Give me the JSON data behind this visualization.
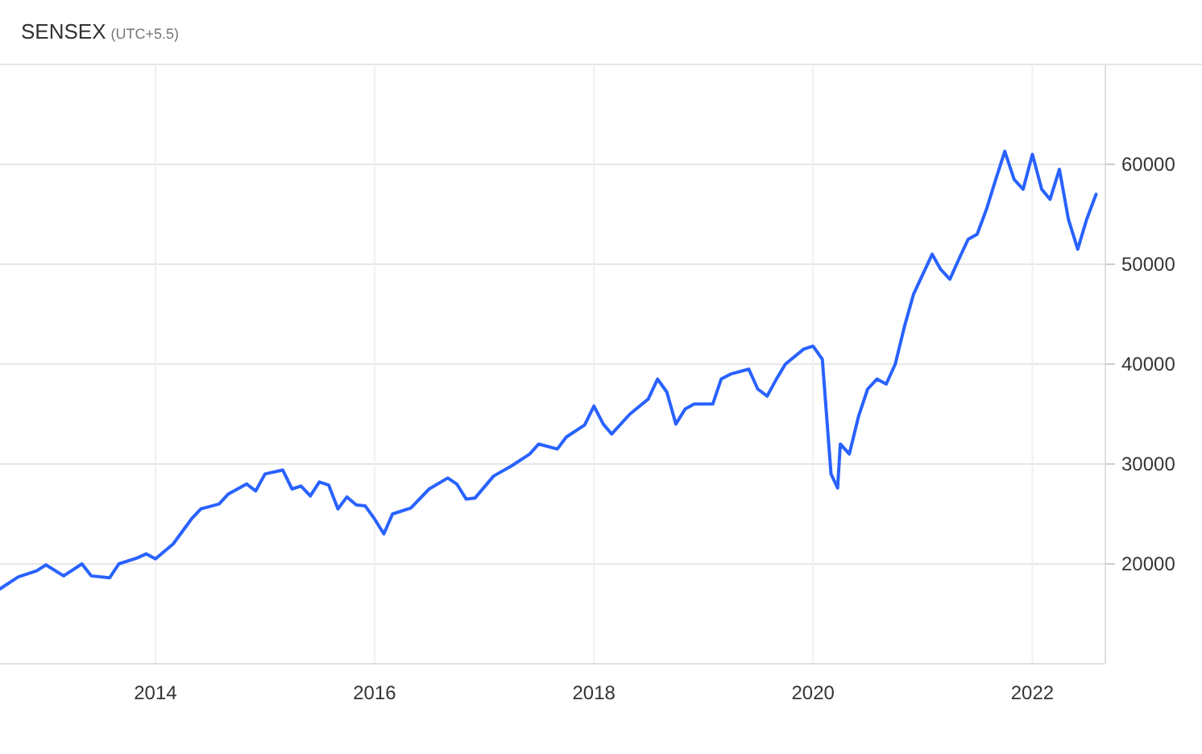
{
  "chart_data": {
    "type": "line",
    "title": "SENSEX",
    "subtitle": "(UTC+5.5)",
    "x": [
      "2012-08",
      "2012-10",
      "2012-12",
      "2013-01",
      "2013-03",
      "2013-05",
      "2013-06",
      "2013-08",
      "2013-09",
      "2013-11",
      "2013-12",
      "2014-01",
      "2014-03",
      "2014-05",
      "2014-06",
      "2014-08",
      "2014-09",
      "2014-11",
      "2014-12",
      "2015-01",
      "2015-03",
      "2015-04",
      "2015-05",
      "2015-06",
      "2015-07",
      "2015-08",
      "2015-09",
      "2015-10",
      "2015-11",
      "2015-12",
      "2016-01",
      "2016-02",
      "2016-03",
      "2016-05",
      "2016-07",
      "2016-09",
      "2016-10",
      "2016-11",
      "2016-12",
      "2017-02",
      "2017-04",
      "2017-06",
      "2017-07",
      "2017-09",
      "2017-10",
      "2017-12",
      "2018-01",
      "2018-02",
      "2018-03",
      "2018-05",
      "2018-07",
      "2018-08",
      "2018-09",
      "2018-10",
      "2018-11",
      "2018-12",
      "2019-02",
      "2019-03",
      "2019-04",
      "2019-06",
      "2019-07",
      "2019-08",
      "2019-09",
      "2019-10",
      "2019-12",
      "2020-01",
      "2020-02",
      "2020-03",
      "2020-03-23",
      "2020-04",
      "2020-05",
      "2020-06",
      "2020-07",
      "2020-08",
      "2020-09",
      "2020-10",
      "2020-11",
      "2020-12",
      "2021-01",
      "2021-02",
      "2021-03",
      "2021-04",
      "2021-05",
      "2021-06",
      "2021-07",
      "2021-08",
      "2021-09",
      "2021-10",
      "2021-11",
      "2021-12",
      "2022-01",
      "2022-02",
      "2022-03",
      "2022-04",
      "2022-05",
      "2022-06",
      "2022-07",
      "2022-08"
    ],
    "series": [
      {
        "color": "#2962ff",
        "values": [
          17500,
          18700,
          19300,
          19900,
          18800,
          20000,
          18800,
          18600,
          20000,
          20600,
          21000,
          20500,
          22000,
          24500,
          25500,
          26000,
          27000,
          28000,
          27300,
          29000,
          29400,
          27500,
          27800,
          26800,
          28200,
          27900,
          25500,
          26700,
          25900,
          25800,
          24500,
          23000,
          25000,
          25600,
          27500,
          28600,
          28000,
          26500,
          26600,
          28800,
          29800,
          31000,
          32000,
          31500,
          32700,
          33900,
          35800,
          34000,
          33000,
          35000,
          36500,
          38500,
          37200,
          34000,
          35500,
          36000,
          36000,
          38500,
          39000,
          39500,
          37500,
          36800,
          38500,
          40000,
          41500,
          41800,
          40500,
          29000,
          27600,
          32000,
          31000,
          34800,
          37500,
          38500,
          38000,
          40000,
          43800,
          47000,
          49000,
          51000,
          49500,
          48500,
          50500,
          52500,
          53000,
          55500,
          58500,
          61300,
          58500,
          57500,
          61000,
          57500,
          56500,
          59500,
          54500,
          51500,
          54500,
          57000
        ]
      }
    ],
    "xlim": [
      "2012-08",
      "2022-09"
    ],
    "xticks": [
      {
        "value": "2014",
        "label": "2014"
      },
      {
        "value": "2016",
        "label": "2016"
      },
      {
        "value": "2018",
        "label": "2018"
      },
      {
        "value": "2020",
        "label": "2020"
      },
      {
        "value": "2022",
        "label": "2022"
      }
    ],
    "ylim": [
      10000,
      70000
    ],
    "yticks": [
      20000,
      30000,
      40000,
      50000,
      60000
    ],
    "grid": true,
    "marker": "none",
    "line_style": "solid"
  }
}
